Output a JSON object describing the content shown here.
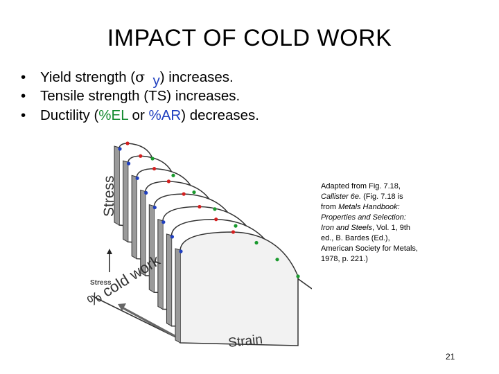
{
  "slide": {
    "title": "IMPACT OF COLD WORK",
    "page_number": "21"
  },
  "bullets": [
    {
      "symbol": "•",
      "pre": "Yield strength (",
      "sigma": "σ",
      "sub": "y",
      "post": ") increases."
    },
    {
      "symbol": "•",
      "text": "Tensile strength (TS) increases."
    },
    {
      "symbol": "•",
      "pre": "Ductility (",
      "el": "%EL",
      "or": " or ",
      "ar": "%AR",
      "post": ") decreases."
    }
  ],
  "figure": {
    "stress_label": "Stress",
    "strain_label": "Strain",
    "inner_stress_label": "Stress",
    "cold_work_label": "% cold work"
  },
  "caption": {
    "l1": "Adapted from Fig. 7.18,",
    "l2_italic": "Callister 6e.",
    "l2_rest": "  (Fig. 7.18 is",
    "l3": "from ",
    "l3_italic": "Metals Handbook:",
    "l4_italic": "Properties and Selection:",
    "l5_italic": "Iron and Steels",
    "l5_rest": ", Vol. 1, 9th",
    "l6": "ed., B. Bardes (Ed.),",
    "l7": "American Society for Metals,",
    "l8": "1978, p. 221.)"
  },
  "colors": {
    "yield_point": "#1f3fbf",
    "tensile_point": "#d42020",
    "fracture_point": "#1a9a2e"
  }
}
